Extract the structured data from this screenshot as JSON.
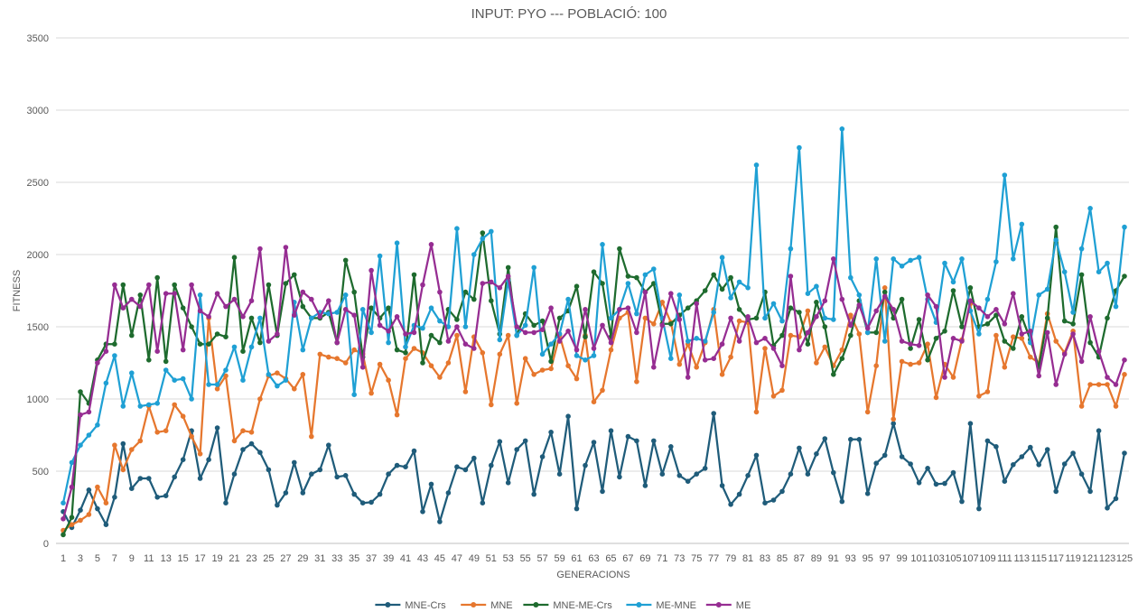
{
  "chart_data": {
    "type": "line",
    "title": "INPUT: PYO  ---  POBLACIÓ: 100",
    "xlabel": "GENERACIONS",
    "ylabel": "FITNESS",
    "ylim": [
      0,
      3500
    ],
    "yticks": [
      0,
      500,
      1000,
      1500,
      2000,
      2500,
      3000,
      3500
    ],
    "x_range": [
      1,
      125
    ],
    "x_tick_step": 2,
    "grid": true,
    "legend": "bottom",
    "series": [
      {
        "name": "MNE-Crs",
        "color": "#1f5c7a",
        "values": [
          220,
          110,
          230,
          370,
          240,
          130,
          320,
          690,
          380,
          450,
          450,
          320,
          330,
          460,
          580,
          780,
          450,
          580,
          800,
          280,
          480,
          650,
          690,
          630,
          510,
          265,
          350,
          560,
          350,
          480,
          510,
          680,
          460,
          470,
          340,
          280,
          285,
          340,
          480,
          540,
          530,
          640,
          220,
          410,
          150,
          350,
          530,
          510,
          590,
          280,
          540,
          705,
          420,
          650,
          710,
          340,
          600,
          770,
          480,
          880,
          240,
          540,
          700,
          360,
          780,
          460,
          740,
          710,
          400,
          710,
          480,
          670,
          470,
          430,
          480,
          520,
          900,
          400,
          270,
          340,
          470,
          610,
          280,
          300,
          360,
          480,
          660,
          480,
          620,
          725,
          490,
          290,
          720,
          720,
          345,
          555,
          610,
          830,
          600,
          550,
          420,
          520,
          410,
          415,
          490,
          290,
          830,
          240,
          710,
          670,
          430,
          545,
          600,
          665,
          545,
          650,
          360,
          550,
          625,
          480,
          360,
          780,
          245,
          310,
          625
        ]
      },
      {
        "name": "MNE",
        "color": "#e6772e",
        "values": [
          90,
          130,
          160,
          200,
          390,
          280,
          680,
          510,
          650,
          710,
          950,
          770,
          780,
          960,
          880,
          740,
          620,
          1560,
          1070,
          1160,
          710,
          780,
          770,
          1000,
          1160,
          1180,
          1140,
          1070,
          1170,
          740,
          1310,
          1290,
          1280,
          1250,
          1340,
          1310,
          1040,
          1240,
          1130,
          890,
          1280,
          1350,
          1320,
          1230,
          1150,
          1250,
          1440,
          1050,
          1430,
          1320,
          960,
          1310,
          1440,
          970,
          1280,
          1170,
          1200,
          1210,
          1440,
          1230,
          1140,
          1440,
          980,
          1060,
          1340,
          1560,
          1600,
          1120,
          1560,
          1520,
          1670,
          1530,
          1240,
          1380,
          1220,
          1390,
          1620,
          1170,
          1290,
          1540,
          1530,
          910,
          1350,
          1020,
          1060,
          1440,
          1430,
          1610,
          1250,
          1360,
          1230,
          1340,
          1580,
          1450,
          910,
          1230,
          1770,
          860,
          1260,
          1240,
          1250,
          1380,
          1010,
          1240,
          1150,
          1410,
          1660,
          1020,
          1050,
          1440,
          1220,
          1430,
          1420,
          1290,
          1250,
          1590,
          1400,
          1320,
          1470,
          950,
          1100,
          1100,
          1100,
          950,
          1170
        ]
      },
      {
        "name": "MNE-ME-Crs",
        "color": "#1e6b2e",
        "values": [
          60,
          180,
          1050,
          970,
          1270,
          1380,
          1380,
          1790,
          1440,
          1720,
          1270,
          1840,
          1260,
          1790,
          1630,
          1500,
          1380,
          1380,
          1450,
          1430,
          1980,
          1330,
          1560,
          1390,
          1790,
          1440,
          1800,
          1860,
          1640,
          1560,
          1560,
          1600,
          1390,
          1960,
          1740,
          1290,
          1630,
          1560,
          1630,
          1340,
          1320,
          1860,
          1250,
          1440,
          1390,
          1620,
          1550,
          1740,
          1690,
          2150,
          1680,
          1450,
          1910,
          1440,
          1590,
          1510,
          1540,
          1260,
          1560,
          1610,
          1780,
          1430,
          1880,
          1800,
          1430,
          2040,
          1850,
          1840,
          1740,
          1800,
          1520,
          1520,
          1580,
          1630,
          1680,
          1750,
          1860,
          1760,
          1840,
          1620,
          1550,
          1560,
          1740,
          1370,
          1440,
          1630,
          1600,
          1380,
          1670,
          1500,
          1170,
          1280,
          1440,
          1680,
          1460,
          1460,
          1740,
          1560,
          1690,
          1350,
          1550,
          1270,
          1420,
          1470,
          1750,
          1500,
          1770,
          1500,
          1520,
          1580,
          1400,
          1350,
          1570,
          1410,
          1220,
          1560,
          2190,
          1540,
          1520,
          1860,
          1390,
          1290,
          1560,
          1750,
          1850
        ]
      },
      {
        "name": "ME-MNE",
        "color": "#1fa0d4",
        "values": [
          280,
          560,
          680,
          750,
          820,
          1110,
          1300,
          950,
          1180,
          950,
          960,
          970,
          1200,
          1130,
          1140,
          1000,
          1720,
          1100,
          1100,
          1200,
          1360,
          1130,
          1360,
          1560,
          1170,
          1090,
          1130,
          1670,
          1340,
          1560,
          1600,
          1590,
          1600,
          1720,
          1030,
          1620,
          1460,
          1990,
          1390,
          2080,
          1360,
          1510,
          1490,
          1630,
          1540,
          1500,
          2180,
          1500,
          2000,
          2110,
          2160,
          1410,
          1820,
          1440,
          1510,
          1910,
          1310,
          1380,
          1450,
          1690,
          1300,
          1270,
          1300,
          2070,
          1560,
          1620,
          1800,
          1590,
          1860,
          1900,
          1560,
          1280,
          1720,
          1400,
          1420,
          1400,
          1600,
          1980,
          1700,
          1810,
          1770,
          2620,
          1560,
          1660,
          1540,
          2040,
          2740,
          1730,
          1780,
          1560,
          1550,
          2870,
          1840,
          1720,
          1460,
          1970,
          1400,
          1970,
          1920,
          1960,
          1980,
          1690,
          1530,
          1940,
          1810,
          1970,
          1610,
          1450,
          1690,
          1950,
          2550,
          1970,
          2210,
          1390,
          1720,
          1760,
          2100,
          1880,
          1600,
          2040,
          2320,
          1880,
          1940,
          1640,
          2190
        ]
      },
      {
        "name": "ME",
        "color": "#962d92",
        "values": [
          170,
          390,
          890,
          910,
          1250,
          1330,
          1790,
          1630,
          1690,
          1640,
          1790,
          1330,
          1730,
          1730,
          1340,
          1790,
          1610,
          1570,
          1730,
          1640,
          1690,
          1570,
          1680,
          2040,
          1400,
          1450,
          2050,
          1580,
          1740,
          1690,
          1570,
          1680,
          1390,
          1620,
          1580,
          1220,
          1890,
          1510,
          1470,
          1570,
          1450,
          1460,
          1790,
          2070,
          1740,
          1400,
          1500,
          1380,
          1350,
          1800,
          1810,
          1770,
          1850,
          1500,
          1460,
          1460,
          1480,
          1630,
          1400,
          1470,
          1340,
          1620,
          1350,
          1510,
          1390,
          1620,
          1630,
          1460,
          1740,
          1220,
          1510,
          1730,
          1550,
          1150,
          1660,
          1270,
          1280,
          1380,
          1560,
          1400,
          1570,
          1390,
          1420,
          1350,
          1230,
          1850,
          1340,
          1460,
          1570,
          1680,
          1970,
          1690,
          1510,
          1650,
          1490,
          1610,
          1710,
          1620,
          1400,
          1380,
          1370,
          1720,
          1640,
          1150,
          1420,
          1400,
          1680,
          1630,
          1570,
          1620,
          1520,
          1730,
          1450,
          1470,
          1160,
          1460,
          1100,
          1310,
          1450,
          1260,
          1570,
          1330,
          1150,
          1100,
          1270
        ]
      }
    ]
  }
}
